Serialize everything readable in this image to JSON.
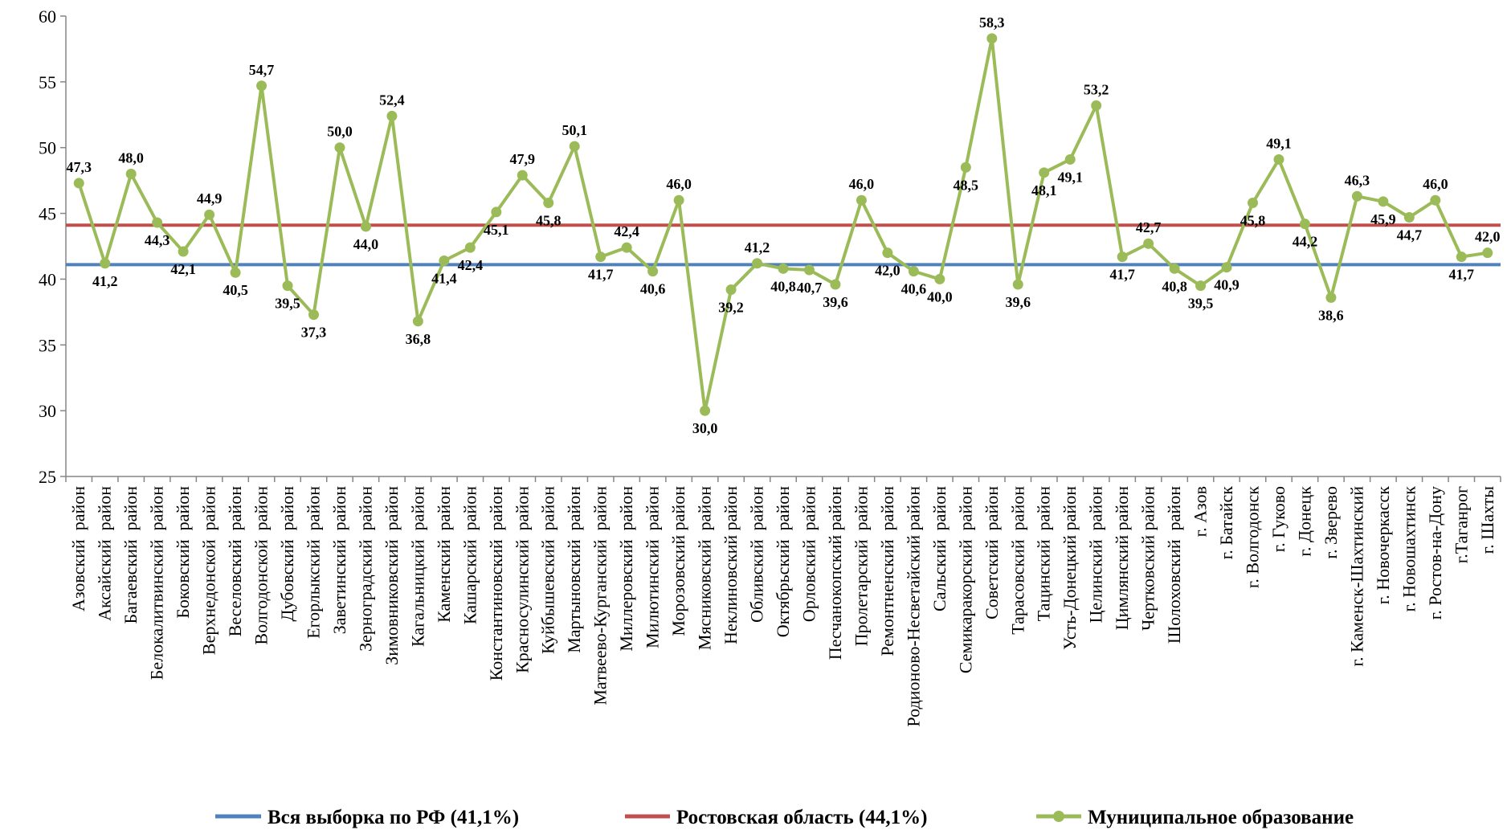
{
  "chart_data": {
    "type": "line",
    "ylim": [
      25,
      60
    ],
    "yticks": [
      25,
      30,
      35,
      40,
      45,
      50,
      55,
      60
    ],
    "grid": false,
    "legend_position": "bottom",
    "categories": [
      "Азовский  район",
      "Аксайский  район",
      "Багаевский  район",
      "Белокалитвинский  район",
      "Боковский  район",
      "Верхнедонской  район",
      "Веселовский  район",
      "Волгодонской  район",
      "Дубовский  район",
      "Егорлыкский  район",
      "Заветинский  район",
      "Зерноградский  район",
      "Зимовниковский  район",
      "Кагальницкий  район",
      "Каменский  район",
      "Кашарский  район",
      "Константиновский  район",
      "Красносулинский  район",
      "Куйбышевский  район",
      "Мартыновский  район",
      "Матвеево-Курганский  район",
      "Миллеровский  район",
      "Милютинский  район",
      "Морозовский район",
      "Мясниковский  район",
      "Неклиновский район",
      "Обливский  район",
      "Октябрьский  район",
      "Орловский  район",
      "Песчанокопский район",
      "Пролетарский  район",
      "Ремонтненский  район",
      "Родионово-Несветайский район",
      "Сальский  район",
      "Семикаракорский  район",
      "Советский  район",
      "Тарасовский  район",
      "Тацинский  район",
      "Усть-Донецкий район",
      "Целинский  район",
      "Цимлянский район",
      "Чертковский район",
      "Шолоховский  район",
      "г. Азов",
      "г. Батайск",
      "г. Волгодонск",
      "г. Гуково",
      "г. Донецк",
      "г. Зверево",
      "г. Каменск-Шахтинский",
      "г. Новочеркасск",
      "г. Новошахтинск",
      "г. Ростов-на-Дону",
      "г.Таганрог",
      "г. Шахты"
    ],
    "series": [
      {
        "name": "Вся выборка по РФ (41,1%)",
        "type": "reference_line",
        "value": 41.1,
        "color": "#4f81bd"
      },
      {
        "name": "Ростовская область (44,1%)",
        "type": "reference_line",
        "value": 44.1,
        "color": "#c0504d"
      },
      {
        "name": "Муниципальное образование",
        "type": "line_markers",
        "color": "#9bbb59",
        "values": [
          47.3,
          41.2,
          48.0,
          44.3,
          42.1,
          44.9,
          40.5,
          54.7,
          39.5,
          37.3,
          50.0,
          44.0,
          52.4,
          36.8,
          41.4,
          42.4,
          45.1,
          47.9,
          45.8,
          50.1,
          41.7,
          42.4,
          40.6,
          46.0,
          30.0,
          39.2,
          41.2,
          40.8,
          40.7,
          39.6,
          46.0,
          42.0,
          40.6,
          40.0,
          48.5,
          58.3,
          39.6,
          48.1,
          49.1,
          53.2,
          41.7,
          42.7,
          40.8,
          39.5,
          40.9,
          45.8,
          49.1,
          44.2,
          38.6,
          46.3,
          45.9,
          44.7,
          46.0,
          41.7,
          42.0
        ],
        "labels": [
          "47,3",
          "41,2",
          "48,0",
          "44,3",
          "42,1",
          "44,9",
          "40,5",
          "54,7",
          "39,5",
          "37,3",
          "50,0",
          "44,0",
          "52,4",
          "36,8",
          "41,4",
          "42,4",
          "45,1",
          "47,9",
          "45,8",
          "50,1",
          "41,7",
          "42,4",
          "40,6",
          "46,0",
          "30,0",
          "39,2",
          "41,2",
          "40,8",
          "40,7",
          "39,6",
          "46,0",
          "42,0",
          "40,6",
          "40,0",
          "48,5",
          "58,3",
          "39,6",
          "48,1",
          "49,1",
          "53,2",
          "41,7",
          "42,7",
          "40,8",
          "39,5",
          "40,9",
          "45,8",
          "49,1",
          "44,2",
          "38,6",
          "46,3",
          "45,9",
          "44,7",
          "46,0",
          "41,7",
          "42,0"
        ]
      }
    ]
  }
}
